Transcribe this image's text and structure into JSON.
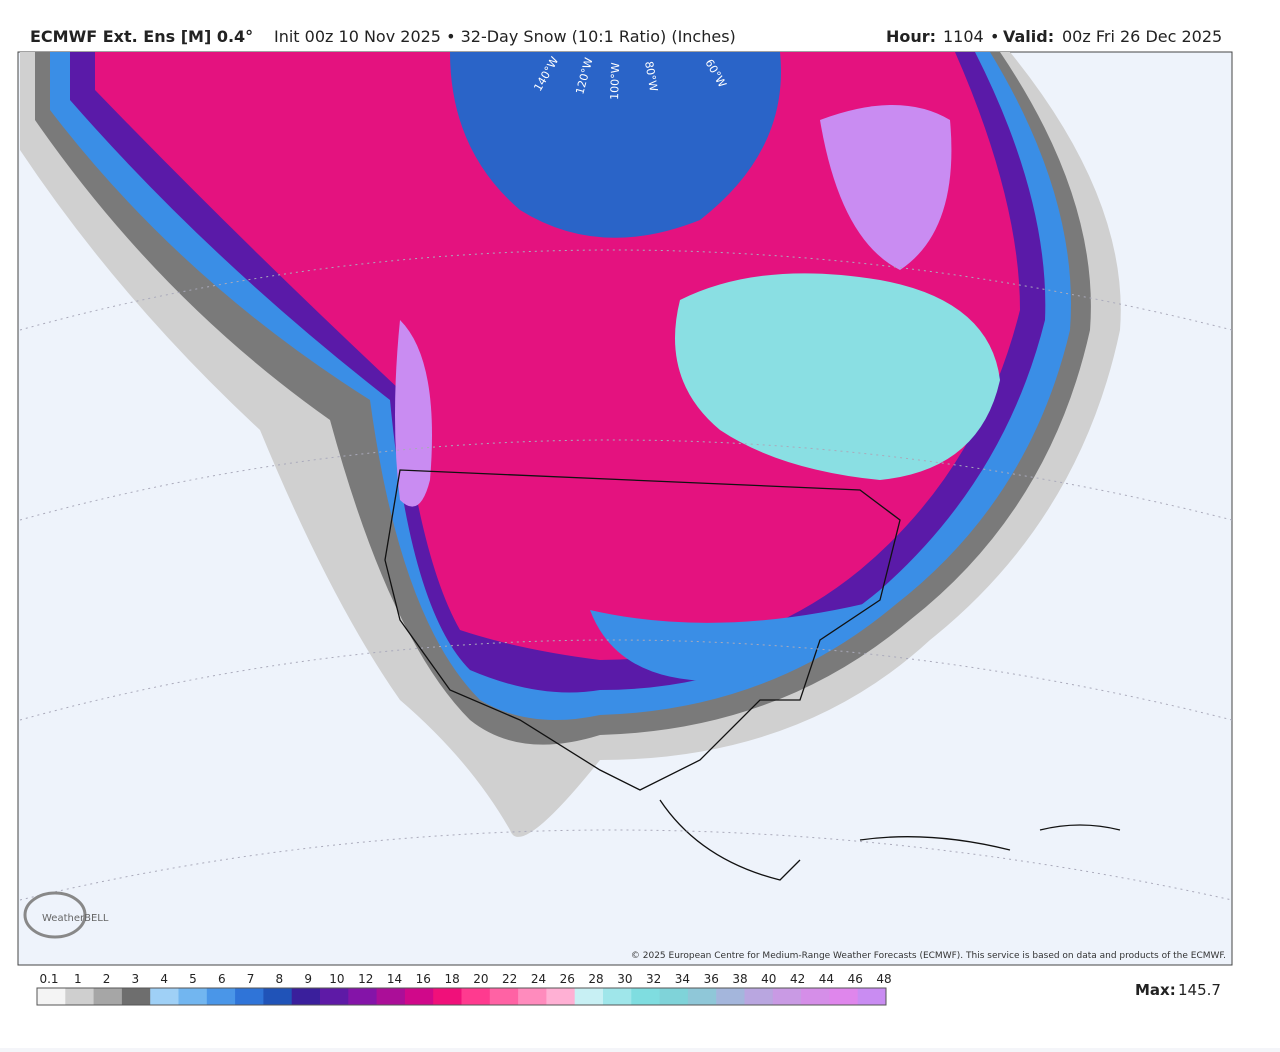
{
  "header": {
    "model": "ECMWF Ext. Ens [M] 0.4°",
    "description": "Init 00z 10 Nov 2025 • 32-Day Snow (10:1 Ratio) (Inches)",
    "hour_label": "Hour:",
    "hour": "1104",
    "valid_label": "Valid:",
    "valid": "00z Fri 26 Dec 2025"
  },
  "map": {
    "longitude_labels": [
      "140°W",
      "120°W",
      "100°W",
      "80°W",
      "60°W"
    ],
    "logo": "WeatherBELL",
    "copyright": "© 2025 European Centre for Medium-Range Weather Forecasts (ECMWF). This service is based on data and products of the ECMWF."
  },
  "colorbar": {
    "labels": [
      "0.1",
      "1",
      "2",
      "3",
      "4",
      "5",
      "6",
      "7",
      "8",
      "9",
      "10",
      "12",
      "14",
      "16",
      "18",
      "20",
      "22",
      "24",
      "26",
      "28",
      "30",
      "32",
      "34",
      "36",
      "38",
      "40",
      "42",
      "44",
      "46",
      "48"
    ],
    "colors": [
      "#f4f4f4",
      "#cfcfcf",
      "#a6a6a6",
      "#6e6e6e",
      "#9fd0f6",
      "#72b6f0",
      "#4a96e8",
      "#2f74d8",
      "#2053b8",
      "#3a1f9c",
      "#5e1aa6",
      "#8414a8",
      "#ab0e98",
      "#d0088a",
      "#f0107a",
      "#ff3a8f",
      "#ff62a4",
      "#ff8bbd",
      "#ffb0d4",
      "#c8f0f4",
      "#9fe6ea",
      "#7fdde0",
      "#7fd3d9",
      "#8fc7d8",
      "#a4b6dc",
      "#b9a6e0",
      "#c99ae4",
      "#d58ee8",
      "#df86ec",
      "#c98cf2"
    ]
  },
  "max": {
    "label": "Max:",
    "value": "145.7"
  }
}
